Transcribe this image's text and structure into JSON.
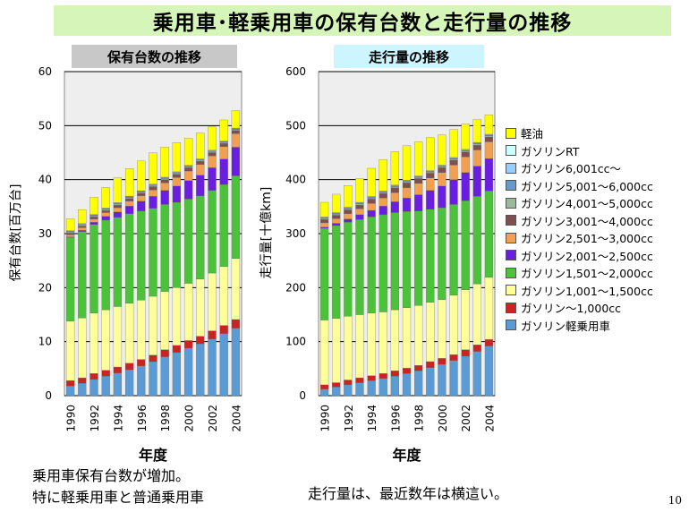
{
  "title": "乗用車･軽乗用車の保有台数と走行量の推移",
  "notes": {
    "left_line1": "乗用車保有台数が増加。",
    "left_line2": "特に軽乗用車と普通乗用車",
    "right": "走行量は、最近数年は横這い。"
  },
  "page_number": "10",
  "legend": [
    {
      "label": "軽油",
      "color": "#ffff00"
    },
    {
      "label": "ガソリンRT",
      "color": "#ccffff"
    },
    {
      "label": "ガソリン6,001cc～",
      "color": "#99ccff"
    },
    {
      "label": "ガソリン5,001～6,000cc",
      "color": "#6699cc"
    },
    {
      "label": "ガソリン4,001～5,000cc",
      "color": "#99bb99"
    },
    {
      "label": "ガソリン3,001～4,000cc",
      "color": "#7f4f4f"
    },
    {
      "label": "ガソリン2,501～3,000cc",
      "color": "#f0a050"
    },
    {
      "label": "ガソリン2,001～2,500cc",
      "color": "#6a1ee0"
    },
    {
      "label": "ガソリン1,501～2,000cc",
      "color": "#4cc13a"
    },
    {
      "label": "ガソリン1,001～1,500cc",
      "color": "#ffff99"
    },
    {
      "label": "ガソリン～1,000cc",
      "color": "#cc2222"
    },
    {
      "label": "ガソリン軽乗用車",
      "color": "#5b9bd5"
    }
  ],
  "chart_data": [
    {
      "type": "bar",
      "stacked": true,
      "title": "保有台数の推移",
      "xlabel": "年度",
      "ylabel": "保有台数[百万台]",
      "ylim": [
        0,
        60
      ],
      "yticks": [
        0,
        10,
        20,
        30,
        40,
        50,
        60
      ],
      "xtick_labels": [
        "1990",
        "1992",
        "1994",
        "1996",
        "1998",
        "2000",
        "2002",
        "2004"
      ],
      "grid": true,
      "categories": [
        "1990",
        "1991",
        "1992",
        "1993",
        "1994",
        "1995",
        "1996",
        "1997",
        "1998",
        "1999",
        "2000",
        "2001",
        "2002",
        "2003",
        "2004"
      ],
      "series": [
        {
          "name": "ガソリン軽乗用車",
          "values": [
            1.8,
            2.3,
            3.0,
            3.6,
            4.2,
            4.8,
            5.5,
            6.3,
            7.2,
            8.0,
            8.8,
            9.6,
            10.5,
            11.5,
            12.5
          ]
        },
        {
          "name": "ガソリン～1,000cc",
          "values": [
            1.0,
            1.0,
            1.1,
            1.1,
            1.1,
            1.2,
            1.2,
            1.2,
            1.3,
            1.3,
            1.4,
            1.4,
            1.5,
            1.5,
            1.6
          ]
        },
        {
          "name": "ガソリン1,001～1,500cc",
          "values": [
            11.0,
            11.1,
            11.2,
            11.2,
            11.2,
            11.1,
            11.0,
            10.9,
            10.8,
            10.7,
            10.6,
            10.6,
            10.7,
            10.9,
            11.3
          ]
        },
        {
          "name": "ガソリン1,501～2,000cc",
          "values": [
            15.5,
            16.0,
            16.4,
            16.6,
            16.5,
            16.6,
            16.5,
            16.3,
            16.1,
            15.8,
            15.6,
            15.4,
            15.3,
            15.2,
            15.3
          ]
        },
        {
          "name": "ガソリン2,001～2,500cc",
          "values": [
            0.1,
            0.2,
            0.4,
            0.7,
            1.0,
            1.4,
            1.8,
            2.2,
            2.6,
            3.0,
            3.4,
            3.8,
            4.2,
            4.7,
            5.3
          ]
        },
        {
          "name": "ガソリン2,501～3,000cc",
          "values": [
            0.4,
            0.5,
            0.6,
            0.7,
            0.8,
            0.9,
            1.0,
            1.2,
            1.4,
            1.6,
            1.8,
            2.0,
            2.2,
            2.3,
            2.5
          ]
        },
        {
          "name": "ガソリン3,001～4,000cc",
          "values": [
            0.3,
            0.3,
            0.4,
            0.4,
            0.5,
            0.5,
            0.5,
            0.6,
            0.6,
            0.6,
            0.6,
            0.6,
            0.6,
            0.6,
            0.6
          ]
        },
        {
          "name": "ガソリン4,001～5,000cc",
          "values": [
            0.2,
            0.2,
            0.2,
            0.2,
            0.2,
            0.2,
            0.2,
            0.2,
            0.2,
            0.2,
            0.2,
            0.2,
            0.2,
            0.2,
            0.2
          ]
        },
        {
          "name": "ガソリン5,001～6,000cc",
          "values": [
            0.1,
            0.1,
            0.1,
            0.1,
            0.1,
            0.1,
            0.1,
            0.1,
            0.1,
            0.1,
            0.1,
            0.1,
            0.1,
            0.1,
            0.1
          ]
        },
        {
          "name": "ガソリン6,001cc～",
          "values": [
            0.05,
            0.05,
            0.05,
            0.05,
            0.05,
            0.05,
            0.05,
            0.05,
            0.05,
            0.05,
            0.05,
            0.05,
            0.05,
            0.05,
            0.05
          ]
        },
        {
          "name": "ガソリンRT",
          "values": [
            0.1,
            0.1,
            0.1,
            0.1,
            0.1,
            0.1,
            0.1,
            0.1,
            0.1,
            0.1,
            0.1,
            0.1,
            0.1,
            0.1,
            0.1
          ]
        },
        {
          "name": "軽油",
          "values": [
            2.2,
            2.6,
            3.2,
            3.8,
            4.6,
            5.1,
            5.5,
            5.8,
            5.6,
            5.4,
            5.0,
            4.8,
            4.3,
            3.9,
            3.2
          ]
        }
      ]
    },
    {
      "type": "bar",
      "stacked": true,
      "title": "走行量の推移",
      "xlabel": "年度",
      "ylabel": "走行量[十億km]",
      "ylim": [
        0,
        600
      ],
      "yticks": [
        0,
        100,
        200,
        300,
        400,
        500,
        600
      ],
      "xtick_labels": [
        "1990",
        "1992",
        "1994",
        "1996",
        "1998",
        "2000",
        "2002",
        "2004"
      ],
      "grid": true,
      "categories": [
        "1990",
        "1991",
        "1992",
        "1993",
        "1994",
        "1995",
        "1996",
        "1997",
        "1998",
        "1999",
        "2000",
        "2001",
        "2002",
        "2003",
        "2004"
      ],
      "series": [
        {
          "name": "ガソリン軽乗用車",
          "values": [
            12,
            16,
            20,
            24,
            28,
            32,
            36,
            41,
            46,
            52,
            58,
            65,
            73,
            82,
            92
          ]
        },
        {
          "name": "ガソリン～1,000cc",
          "values": [
            8,
            8,
            9,
            9,
            9,
            9,
            10,
            10,
            10,
            11,
            11,
            11,
            12,
            12,
            12
          ]
        },
        {
          "name": "ガソリン1,001～1,500cc",
          "values": [
            120,
            119,
            118,
            117,
            116,
            114,
            113,
            112,
            111,
            110,
            109,
            110,
            111,
            113,
            115
          ]
        },
        {
          "name": "ガソリン1,501～2,000cc",
          "values": [
            170,
            172,
            174,
            176,
            178,
            180,
            180,
            178,
            175,
            172,
            170,
            168,
            165,
            162,
            160
          ]
        },
        {
          "name": "ガソリン2,001～2,500cc",
          "values": [
            2,
            4,
            6,
            9,
            12,
            16,
            20,
            25,
            30,
            35,
            40,
            46,
            52,
            56,
            60
          ]
        },
        {
          "name": "ガソリン2,501～3,000cc",
          "values": [
            8,
            9,
            10,
            11,
            13,
            15,
            17,
            19,
            21,
            23,
            25,
            27,
            29,
            30,
            31
          ]
        },
        {
          "name": "ガソリン3,001～4,000cc",
          "values": [
            6,
            6,
            7,
            7,
            8,
            8,
            9,
            9,
            9,
            9,
            9,
            9,
            9,
            9,
            9
          ]
        },
        {
          "name": "ガソリン4,001～5,000cc",
          "values": [
            2,
            2,
            2,
            2,
            2,
            2,
            2,
            2,
            2,
            2,
            2,
            2,
            2,
            2,
            2
          ]
        },
        {
          "name": "ガソリン5,001～6,000cc",
          "values": [
            1,
            1,
            1,
            1,
            1,
            1,
            1,
            1,
            1,
            1,
            1,
            1,
            1,
            1,
            1
          ]
        },
        {
          "name": "ガソリン6,001cc～",
          "values": [
            1,
            1,
            1,
            1,
            1,
            1,
            1,
            1,
            1,
            1,
            1,
            1,
            1,
            1,
            1
          ]
        },
        {
          "name": "ガソリンRT",
          "values": [
            1,
            1,
            1,
            1,
            1,
            1,
            1,
            1,
            1,
            1,
            1,
            1,
            1,
            1,
            1
          ]
        },
        {
          "name": "軽油",
          "values": [
            27,
            34,
            40,
            44,
            52,
            58,
            62,
            64,
            63,
            61,
            56,
            52,
            47,
            42,
            36
          ]
        }
      ]
    }
  ]
}
